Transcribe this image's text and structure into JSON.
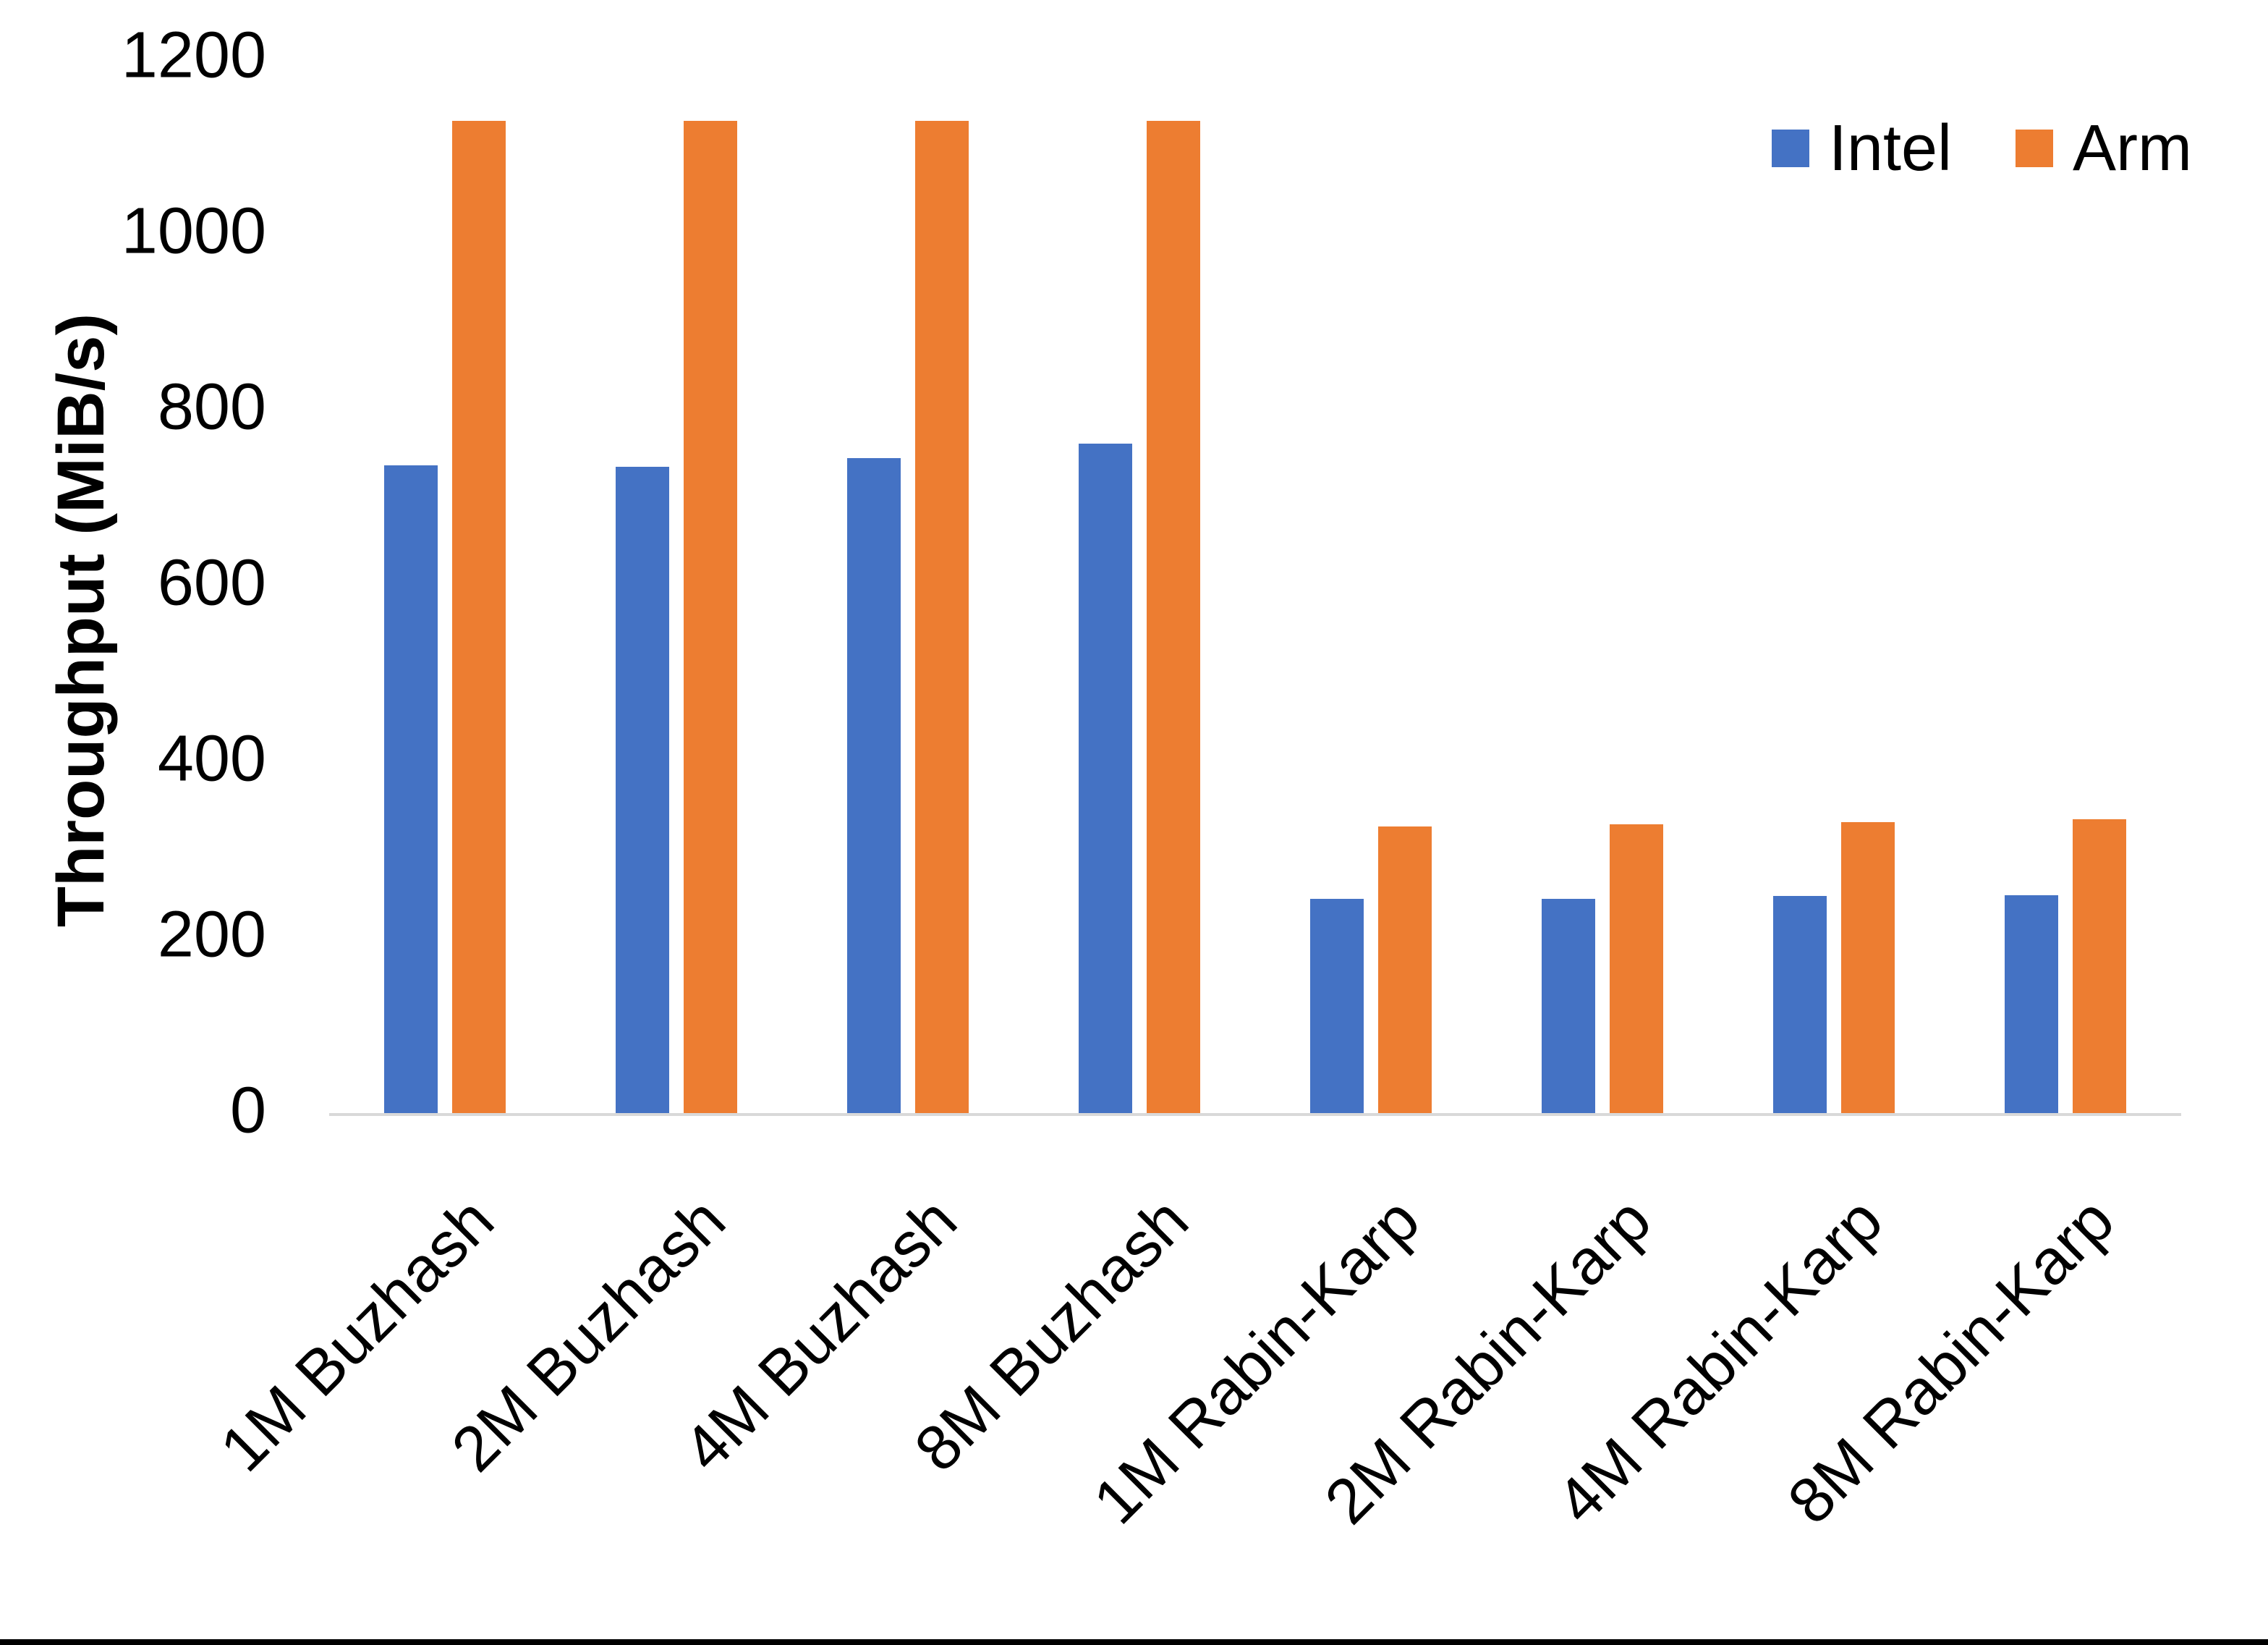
{
  "chart_data": {
    "type": "bar",
    "title": "",
    "xlabel": "",
    "ylabel": "Throughput (MiB/s)",
    "ylim": [
      0,
      1200
    ],
    "ytick_interval": 200,
    "yticks": [
      0,
      200,
      400,
      600,
      800,
      1000,
      1200
    ],
    "grid": false,
    "legend_position": "top-right",
    "bar_orientation": "vertical",
    "categories": [
      "1M Buzhash",
      "2M Buzhash",
      "4M Buzhash",
      "8M Buzhash",
      "1M Rabin-Karp",
      "2M Rabin-Karp",
      "4M Rabin-Karp",
      "8M Rabin-Karp"
    ],
    "series": [
      {
        "name": "Intel",
        "color": "#4472C4",
        "values": [
          737,
          735,
          745,
          761,
          244,
          244,
          247,
          248
        ]
      },
      {
        "name": "Arm",
        "color": "#ED7D31",
        "values": [
          1128,
          1128,
          1128,
          1128,
          326,
          328,
          331,
          334
        ]
      }
    ]
  },
  "axis": {
    "ylabel": "Throughput (MiB/s)",
    "ytick_labels": [
      "0",
      "200",
      "400",
      "600",
      "800",
      "1000",
      "1200"
    ]
  },
  "legend": {
    "items": [
      {
        "label": "Intel",
        "color": "#4472C4"
      },
      {
        "label": "Arm",
        "color": "#ED7D31"
      }
    ]
  },
  "colors": {
    "background": "#FFFFFF",
    "text": "#000000",
    "axis_line": "#D9D9D9",
    "bottom_border": "#000000",
    "intel_bar": "#4472C4",
    "arm_bar": "#ED7D31"
  }
}
